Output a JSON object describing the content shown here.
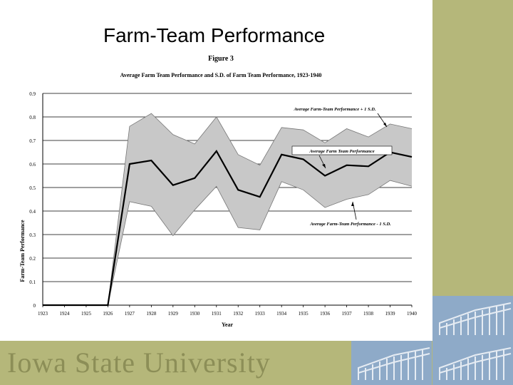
{
  "slide": {
    "title": "Farm-Team Performance",
    "footer_text": "Iowa State University",
    "colors": {
      "band": "#b5b77a",
      "logo_blue": "#8eaac8",
      "band_fill": "#c8c8c8"
    }
  },
  "chart_data": {
    "type": "line",
    "title": "Figure 3",
    "subtitle": "Average Farm Team Performance and S.D. of Farm Team Performance, 1923-1940",
    "xlabel": "Year",
    "ylabel": "Farm-Team Performance",
    "ylim": [
      0,
      0.9
    ],
    "yticks": [
      "0",
      "0.1",
      "0.2",
      "0.3",
      "0.4",
      "0.5",
      "0.6",
      "0.7",
      "0.8",
      "0.9"
    ],
    "grid": true,
    "categories": [
      "1923",
      "1924",
      "1925",
      "1926",
      "1927",
      "1928",
      "1929",
      "1930",
      "1931",
      "1932",
      "1933",
      "1934",
      "1935",
      "1936",
      "1937",
      "1938",
      "1939",
      "1940"
    ],
    "series": [
      {
        "name": "Average Farm-Team Performance + 1 S.D.",
        "values": [
          0,
          0,
          0,
          0,
          0.76,
          0.815,
          0.725,
          0.685,
          0.8,
          0.64,
          0.595,
          0.755,
          0.745,
          0.69,
          0.75,
          0.715,
          0.77,
          0.75
        ]
      },
      {
        "name": "Average Farm Team Performance",
        "values": [
          0,
          0,
          0,
          0,
          0.6,
          0.615,
          0.51,
          0.54,
          0.655,
          0.49,
          0.46,
          0.64,
          0.62,
          0.55,
          0.595,
          0.59,
          0.65,
          0.63
        ]
      },
      {
        "name": "Average Farm-Team Performance - 1 S.D.",
        "values": [
          0,
          0,
          0,
          0,
          0.44,
          0.42,
          0.295,
          0.405,
          0.505,
          0.33,
          0.32,
          0.525,
          0.49,
          0.415,
          0.45,
          0.47,
          0.53,
          0.505
        ]
      }
    ],
    "annotations": [
      "Average Farm-Team Performance + 1 S.D.",
      "Average Farm Team Performance",
      "Average Farm-Team Performance - 1 S.D."
    ]
  }
}
